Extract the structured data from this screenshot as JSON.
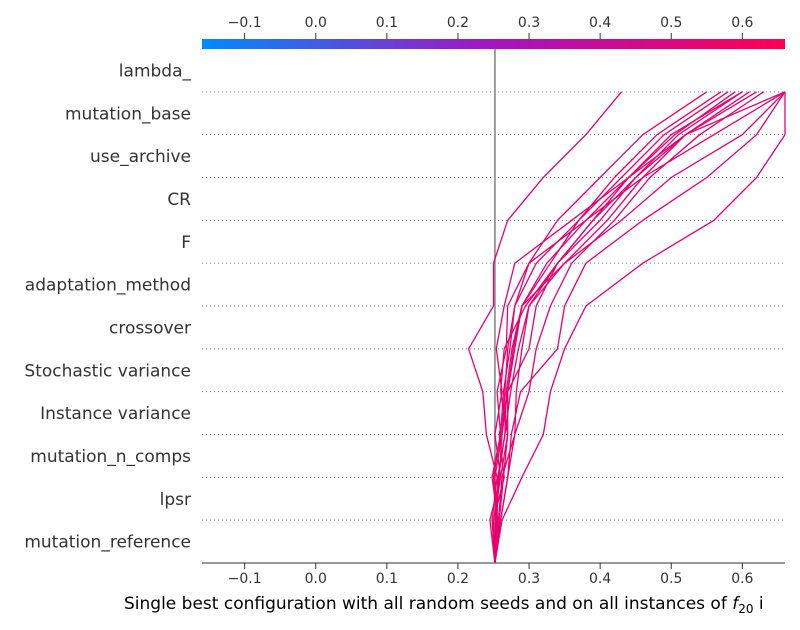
{
  "chart_data": {
    "type": "line",
    "subtype": "shap-decision-plot",
    "xlabel_prefix": "Single best configuration with all random seeds and on all instances of ",
    "xlabel_math": "f",
    "xlabel_sub": "20",
    "xlabel_suffix": " i",
    "xlim": [
      -0.16,
      0.66
    ],
    "x_ticks": [
      -0.1,
      0.0,
      0.1,
      0.2,
      0.3,
      0.4,
      0.5,
      0.6
    ],
    "x_tick_labels": [
      "−0.1",
      "0.0",
      "0.1",
      "0.2",
      "0.3",
      "0.4",
      "0.5",
      "0.6"
    ],
    "base_value": 0.252,
    "features": [
      "lambda_",
      "mutation_base",
      "use_archive",
      "CR",
      "F",
      "adaptation_method",
      "crossover",
      "Stochastic variance",
      "Instance variance",
      "mutation_n_comps",
      "lpsr",
      "mutation_reference"
    ],
    "colorbar": {
      "low_color": "#008bfb",
      "high_color": "#ff0052",
      "range": [
        -0.16,
        0.66
      ]
    },
    "line_color": "#e8006f",
    "grid": "dotted horizontal per feature",
    "series": [
      {
        "values": [
          0.252,
          0.245,
          0.26,
          0.252,
          0.262,
          0.254,
          0.265,
          0.28,
          0.36,
          0.44,
          0.52,
          0.66
        ]
      },
      {
        "values": [
          0.252,
          0.256,
          0.248,
          0.26,
          0.255,
          0.268,
          0.27,
          0.3,
          0.38,
          0.46,
          0.56,
          0.66
        ]
      },
      {
        "values": [
          0.252,
          0.25,
          0.265,
          0.258,
          0.27,
          0.28,
          0.29,
          0.35,
          0.43,
          0.5,
          0.6,
          0.66
        ]
      },
      {
        "values": [
          0.252,
          0.26,
          0.27,
          0.275,
          0.288,
          0.34,
          0.35,
          0.38,
          0.46,
          0.55,
          0.62,
          0.66
        ]
      },
      {
        "values": [
          0.252,
          0.262,
          0.29,
          0.32,
          0.33,
          0.35,
          0.38,
          0.46,
          0.56,
          0.62,
          0.66,
          0.66
        ]
      },
      {
        "values": [
          0.252,
          0.248,
          0.255,
          0.24,
          0.235,
          0.215,
          0.25,
          0.25,
          0.27,
          0.32,
          0.38,
          0.43
        ]
      },
      {
        "values": [
          0.252,
          0.255,
          0.252,
          0.262,
          0.266,
          0.27,
          0.28,
          0.3,
          0.34,
          0.4,
          0.46,
          0.55
        ]
      },
      {
        "values": [
          0.252,
          0.258,
          0.264,
          0.27,
          0.27,
          0.278,
          0.29,
          0.33,
          0.37,
          0.42,
          0.48,
          0.57
        ]
      },
      {
        "values": [
          0.252,
          0.25,
          0.26,
          0.27,
          0.26,
          0.265,
          0.295,
          0.34,
          0.39,
          0.44,
          0.5,
          0.6
        ]
      },
      {
        "values": [
          0.252,
          0.26,
          0.27,
          0.28,
          0.282,
          0.29,
          0.3,
          0.35,
          0.41,
          0.46,
          0.52,
          0.62
        ]
      },
      {
        "values": [
          0.252,
          0.256,
          0.25,
          0.26,
          0.264,
          0.273,
          0.28,
          0.31,
          0.37,
          0.43,
          0.49,
          0.58
        ]
      },
      {
        "values": [
          0.252,
          0.253,
          0.257,
          0.266,
          0.268,
          0.276,
          0.29,
          0.325,
          0.38,
          0.44,
          0.505,
          0.59
        ]
      },
      {
        "values": [
          0.252,
          0.257,
          0.262,
          0.28,
          0.3,
          0.31,
          0.33,
          0.36,
          0.42,
          0.47,
          0.54,
          0.63
        ]
      },
      {
        "values": [
          0.252,
          0.254,
          0.258,
          0.262,
          0.27,
          0.3,
          0.31,
          0.34,
          0.39,
          0.45,
          0.52,
          0.61
        ]
      },
      {
        "values": [
          0.252,
          0.255,
          0.256,
          0.266,
          0.274,
          0.285,
          0.3,
          0.34,
          0.4,
          0.45,
          0.51,
          0.6
        ]
      }
    ]
  }
}
